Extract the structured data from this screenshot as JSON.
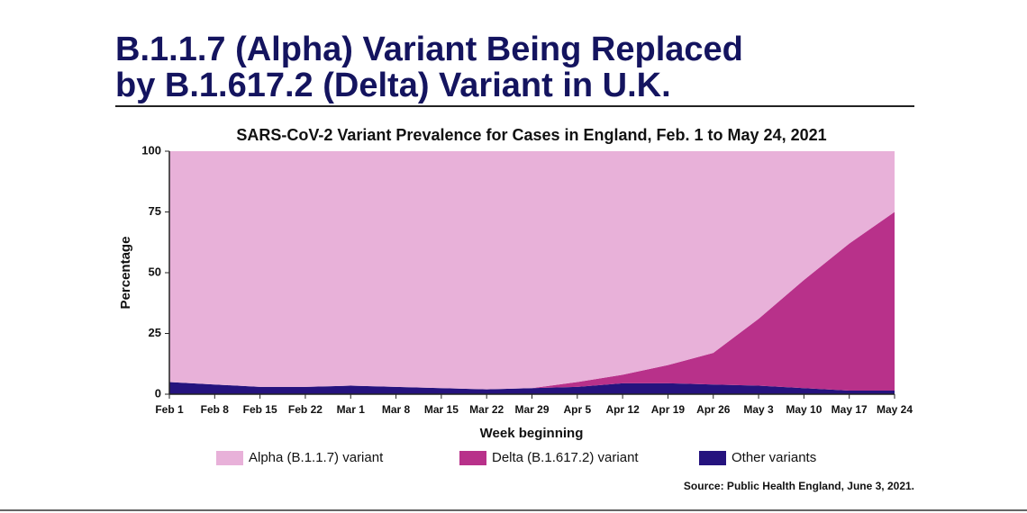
{
  "header": {
    "title": [
      "B.1.1.7 (Alpha) Variant Being Replaced",
      "by B.1.617.2 (Delta) Variant in U.K."
    ]
  },
  "chart_data": {
    "type": "stacked_area",
    "title": "SARS-CoV-2 Variant Prevalence for Cases in England, Feb. 1 to May 24, 2021",
    "xlabel": "Week beginning",
    "ylabel": "Percentage",
    "categories": [
      "Feb 1",
      "Feb 8",
      "Feb 15",
      "Feb 22",
      "Mar 1",
      "Mar 8",
      "Mar 15",
      "Mar 22",
      "Mar 29",
      "Apr 5",
      "Apr 12",
      "Apr 19",
      "Apr 26",
      "May 3",
      "May 10",
      "May 17",
      "May 24"
    ],
    "series": [
      {
        "name": "Alpha (B.1.1.7) variant",
        "color": "#e8b1d9",
        "values": [
          95,
          96,
          97,
          97,
          96.5,
          97,
          97.5,
          98,
          97.5,
          95,
          92,
          88,
          83,
          69,
          53,
          38,
          25
        ]
      },
      {
        "name": "Delta (B.1.617.2) variant",
        "color": "#b8318a",
        "values": [
          0,
          0,
          0,
          0,
          0,
          0,
          0,
          0,
          0,
          2,
          3.5,
          7.5,
          13,
          27.5,
          44.5,
          60.5,
          73.5
        ]
      },
      {
        "name": "Other variants",
        "color": "#25137e",
        "values": [
          5,
          4,
          3,
          3,
          3.5,
          3,
          2.5,
          2,
          2.5,
          3,
          4.5,
          4.5,
          4,
          3.5,
          2.5,
          1.5,
          1.5
        ]
      }
    ],
    "ylim": [
      0,
      100
    ],
    "yticks": [
      0,
      25,
      50,
      75,
      100
    ],
    "source": "Source: Public Health England, June 3, 2021."
  }
}
